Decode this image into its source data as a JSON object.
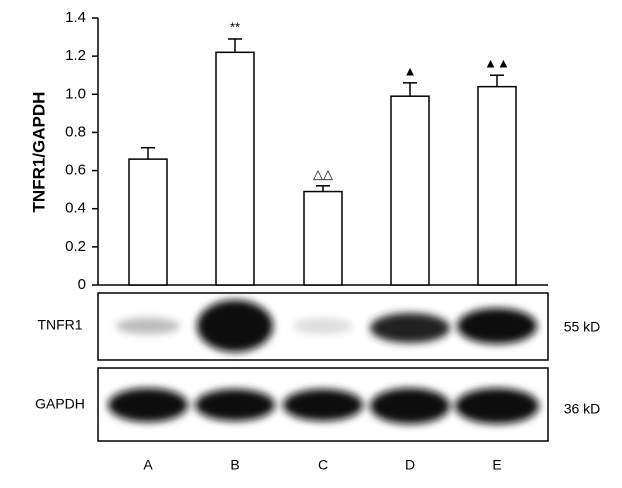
{
  "chart_data": {
    "type": "bar",
    "y_label": "TNFR1/GAPDH",
    "categories": [
      "A",
      "B",
      "C",
      "D",
      "E"
    ],
    "values": [
      0.66,
      1.22,
      0.49,
      0.99,
      1.04
    ],
    "errors": [
      0.06,
      0.07,
      0.03,
      0.07,
      0.06
    ],
    "annotations": [
      null,
      "**",
      "△△",
      "▲",
      "▲▲"
    ],
    "color": "#ffffff",
    "ylim": [
      0,
      1.4
    ],
    "yticks": [
      0,
      0.2,
      0.4,
      0.6,
      0.8,
      {
        "value": 1,
        "label": "1.0"
      },
      1.2,
      1.4
    ],
    "blots": [
      {
        "name": "TNFR1",
        "size": "55 kD"
      },
      {
        "name": "GAPDH",
        "size": "36 kD"
      }
    ]
  }
}
